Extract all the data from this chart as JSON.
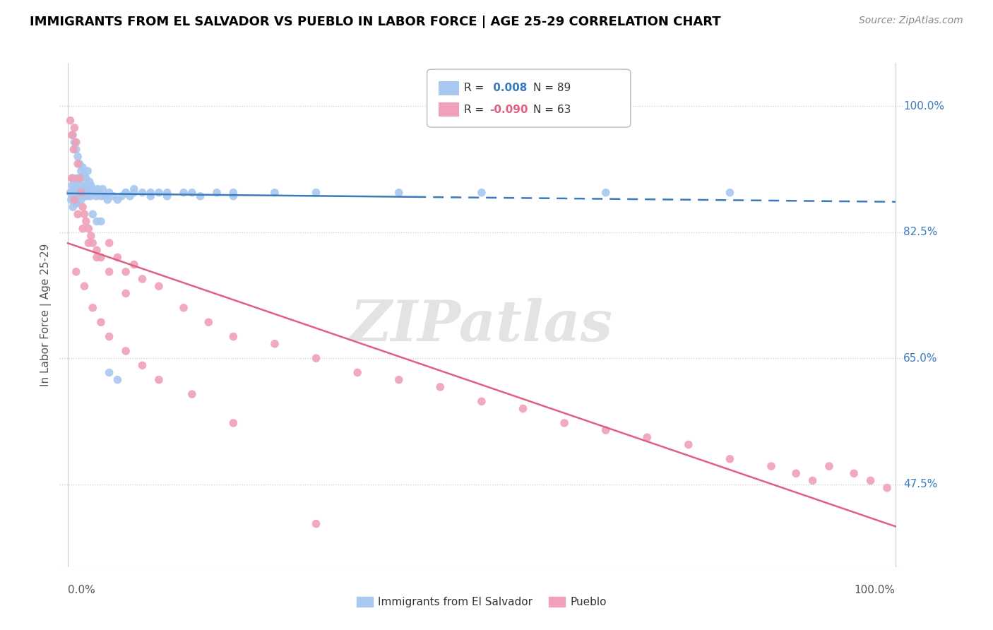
{
  "title": "IMMIGRANTS FROM EL SALVADOR VS PUEBLO IN LABOR FORCE | AGE 25-29 CORRELATION CHART",
  "source": "Source: ZipAtlas.com",
  "ylabel": "In Labor Force | Age 25-29",
  "watermark": "ZIPatlas",
  "legend_r1": " 0.008",
  "legend_n1": "N = 89",
  "legend_r2": "-0.090",
  "legend_n2": "N = 63",
  "blue_color": "#a8c8f0",
  "pink_color": "#f0a0b8",
  "blue_line_color": "#3a7abf",
  "pink_line_color": "#e06080",
  "ytick_vals": [
    0.475,
    0.65,
    0.825,
    1.0
  ],
  "ytick_labels": [
    "47.5%",
    "65.0%",
    "82.5%",
    "100.0%"
  ],
  "blue_x": [
    0.003,
    0.004,
    0.005,
    0.006,
    0.006,
    0.007,
    0.007,
    0.008,
    0.008,
    0.009,
    0.009,
    0.01,
    0.01,
    0.011,
    0.011,
    0.012,
    0.012,
    0.013,
    0.013,
    0.014,
    0.014,
    0.015,
    0.015,
    0.016,
    0.016,
    0.017,
    0.018,
    0.019,
    0.02,
    0.021,
    0.022,
    0.023,
    0.024,
    0.025,
    0.026,
    0.027,
    0.028,
    0.03,
    0.032,
    0.034,
    0.036,
    0.038,
    0.04,
    0.042,
    0.045,
    0.048,
    0.05,
    0.055,
    0.06,
    0.065,
    0.07,
    0.075,
    0.08,
    0.09,
    0.1,
    0.11,
    0.12,
    0.14,
    0.16,
    0.18,
    0.2,
    0.006,
    0.008,
    0.01,
    0.012,
    0.014,
    0.016,
    0.018,
    0.02,
    0.022,
    0.024,
    0.026,
    0.03,
    0.035,
    0.04,
    0.05,
    0.06,
    0.07,
    0.08,
    0.1,
    0.12,
    0.15,
    0.2,
    0.25,
    0.3,
    0.4,
    0.5,
    0.65,
    0.8
  ],
  "blue_y": [
    0.88,
    0.87,
    0.89,
    0.86,
    0.9,
    0.875,
    0.885,
    0.87,
    0.895,
    0.865,
    0.885,
    0.875,
    0.895,
    0.865,
    0.9,
    0.88,
    0.87,
    0.89,
    0.875,
    0.885,
    0.875,
    0.89,
    0.88,
    0.87,
    0.9,
    0.875,
    0.885,
    0.88,
    0.875,
    0.89,
    0.88,
    0.875,
    0.89,
    0.885,
    0.88,
    0.875,
    0.89,
    0.885,
    0.88,
    0.875,
    0.885,
    0.88,
    0.875,
    0.885,
    0.875,
    0.87,
    0.88,
    0.875,
    0.87,
    0.875,
    0.88,
    0.875,
    0.885,
    0.88,
    0.875,
    0.88,
    0.875,
    0.88,
    0.875,
    0.88,
    0.875,
    0.96,
    0.95,
    0.94,
    0.93,
    0.92,
    0.91,
    0.915,
    0.905,
    0.9,
    0.91,
    0.895,
    0.85,
    0.84,
    0.84,
    0.63,
    0.62,
    0.88,
    0.88,
    0.88,
    0.88,
    0.88,
    0.88,
    0.88,
    0.88,
    0.88,
    0.88,
    0.88,
    0.88
  ],
  "pink_x": [
    0.003,
    0.005,
    0.007,
    0.008,
    0.01,
    0.012,
    0.014,
    0.016,
    0.018,
    0.02,
    0.022,
    0.025,
    0.028,
    0.03,
    0.035,
    0.04,
    0.05,
    0.06,
    0.07,
    0.08,
    0.005,
    0.008,
    0.012,
    0.018,
    0.025,
    0.035,
    0.05,
    0.07,
    0.09,
    0.11,
    0.14,
    0.17,
    0.2,
    0.25,
    0.3,
    0.35,
    0.4,
    0.45,
    0.5,
    0.55,
    0.6,
    0.65,
    0.7,
    0.75,
    0.8,
    0.85,
    0.88,
    0.9,
    0.92,
    0.95,
    0.97,
    0.99,
    0.01,
    0.02,
    0.03,
    0.04,
    0.05,
    0.07,
    0.09,
    0.11,
    0.15,
    0.2,
    0.3
  ],
  "pink_y": [
    0.98,
    0.96,
    0.94,
    0.97,
    0.95,
    0.92,
    0.9,
    0.88,
    0.86,
    0.85,
    0.84,
    0.83,
    0.82,
    0.81,
    0.8,
    0.79,
    0.81,
    0.79,
    0.77,
    0.78,
    0.9,
    0.87,
    0.85,
    0.83,
    0.81,
    0.79,
    0.77,
    0.74,
    0.76,
    0.75,
    0.72,
    0.7,
    0.68,
    0.67,
    0.65,
    0.63,
    0.62,
    0.61,
    0.59,
    0.58,
    0.56,
    0.55,
    0.54,
    0.53,
    0.51,
    0.5,
    0.49,
    0.48,
    0.5,
    0.49,
    0.48,
    0.47,
    0.77,
    0.75,
    0.72,
    0.7,
    0.68,
    0.66,
    0.64,
    0.62,
    0.6,
    0.56,
    0.42
  ]
}
